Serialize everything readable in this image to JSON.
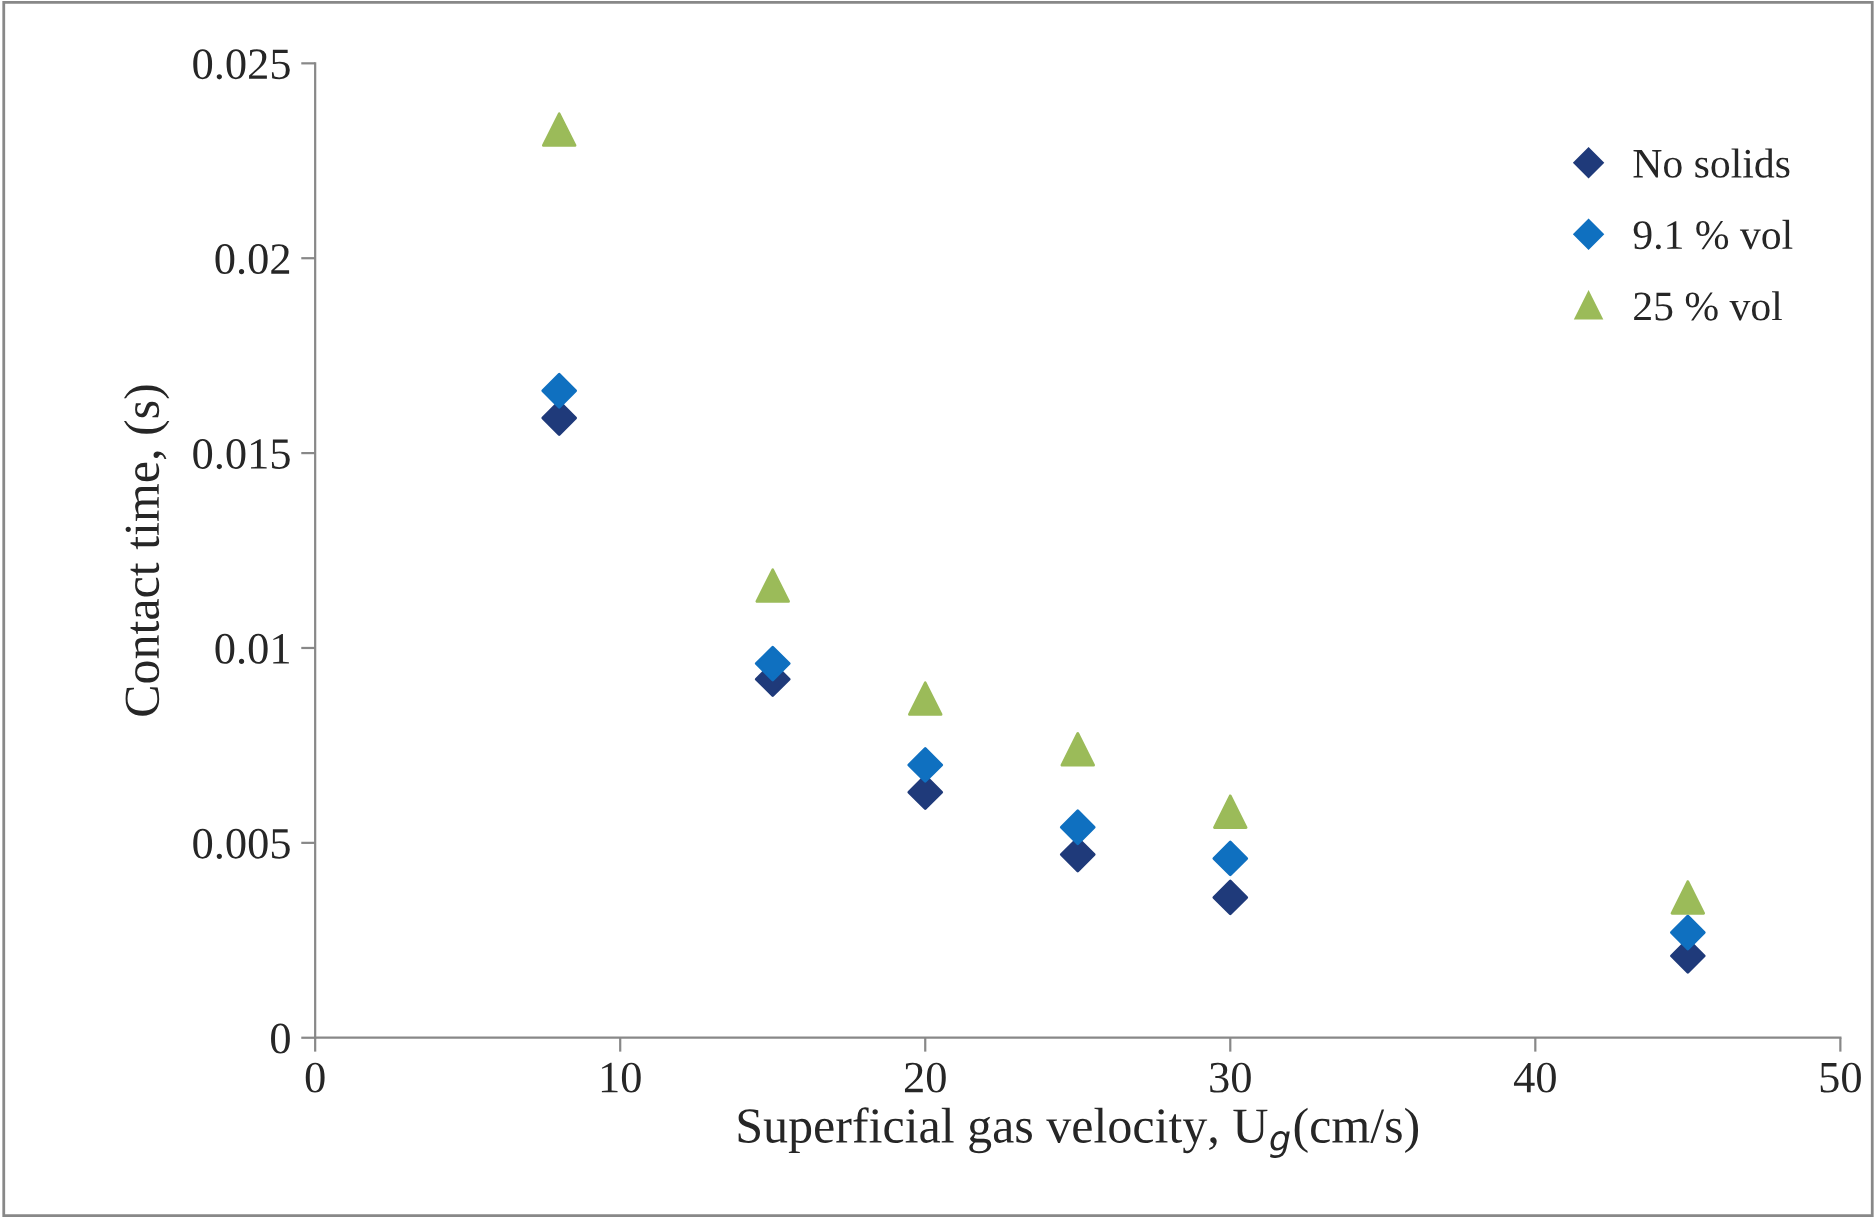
{
  "chart_data": {
    "type": "scatter",
    "xlabel": "Superficial gas velocity, U$_{g}$(cm/s)",
    "ylabel": "Contact time, (s)",
    "x": [
      8,
      15,
      20,
      25,
      30,
      45
    ],
    "series": [
      {
        "name": "No solids",
        "color": "#1f3a7a",
        "marker": "diamond",
        "values": [
          0.0159,
          0.0092,
          0.0063,
          0.0047,
          0.0036,
          0.0021
        ]
      },
      {
        "name": "9.1 % vol",
        "color": "#0f70c0",
        "marker": "diamond",
        "values": [
          0.0166,
          0.0096,
          0.007,
          0.0054,
          0.0046,
          0.0027
        ]
      },
      {
        "name": "25 % vol",
        "color": "#9bbb59",
        "marker": "triangle",
        "values": [
          0.0233,
          0.0116,
          0.0087,
          0.0074,
          0.0058,
          0.0036
        ]
      }
    ],
    "xlim": [
      0,
      50
    ],
    "xticks": [
      0,
      10,
      20,
      30,
      40,
      50
    ],
    "ylim": [
      0,
      0.025
    ],
    "yticks": [
      0,
      0.005,
      0.01,
      0.015,
      0.02,
      0.025
    ],
    "grid": false,
    "legend": "top right"
  }
}
